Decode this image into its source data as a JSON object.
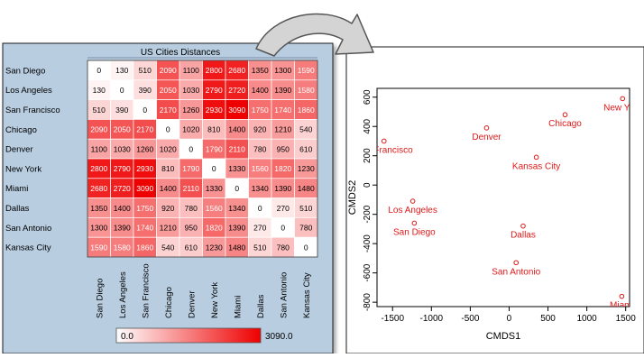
{
  "chart_data": [
    {
      "type": "heatmap",
      "title": "US Cities Distances",
      "rows": [
        "San Diego",
        "Los Angeles",
        "San Francisco",
        "Chicago",
        "Denver",
        "New York",
        "Miami",
        "Dallas",
        "San Antonio",
        "Kansas City"
      ],
      "columns": [
        "San Diego",
        "Los Angeles",
        "San Francisco",
        "Chicago",
        "Denver",
        "New York",
        "Miami",
        "Dallas",
        "San Antonio",
        "Kansas City"
      ],
      "values": [
        [
          0,
          130,
          510,
          2090,
          1100,
          2800,
          2680,
          1350,
          1300,
          1590
        ],
        [
          130,
          0,
          390,
          2050,
          1030,
          2790,
          2720,
          1400,
          1390,
          1580
        ],
        [
          510,
          390,
          0,
          2170,
          1260,
          2930,
          3090,
          1750,
          1740,
          1860
        ],
        [
          2090,
          2050,
          2170,
          0,
          1020,
          810,
          1400,
          920,
          1210,
          540
        ],
        [
          1100,
          1030,
          1260,
          1020,
          0,
          1790,
          2110,
          780,
          950,
          610
        ],
        [
          2800,
          2790,
          2930,
          810,
          1790,
          0,
          1330,
          1560,
          1820,
          1230
        ],
        [
          2680,
          2720,
          3090,
          1400,
          2110,
          1330,
          0,
          1340,
          1390,
          1480
        ],
        [
          1350,
          1400,
          1750,
          920,
          780,
          1560,
          1340,
          0,
          270,
          510
        ],
        [
          1300,
          1390,
          1740,
          1210,
          950,
          1820,
          1390,
          270,
          0,
          780
        ],
        [
          1590,
          1580,
          1860,
          540,
          610,
          1230,
          1480,
          510,
          780,
          0
        ]
      ],
      "colorscale": {
        "min": 0,
        "max": 3090,
        "min_label": "0.0",
        "max_label": "3090.0",
        "low_color": "#ffffff",
        "high_color": "#ee0000"
      }
    },
    {
      "type": "scatter",
      "xlabel": "CMDS1",
      "ylabel": "CMDS2",
      "xlim": [
        -1700,
        1550
      ],
      "ylim": [
        -830,
        660
      ],
      "xticks": [
        -1500,
        -1000,
        -500,
        0,
        500,
        1000,
        1500
      ],
      "yticks": [
        -800,
        -600,
        -400,
        -200,
        0,
        200,
        400,
        600
      ],
      "point_color": "#e01818",
      "points": [
        {
          "label": "San Francisco",
          "x": -1610,
          "y": 300
        },
        {
          "label": "Denver",
          "x": -290,
          "y": 390
        },
        {
          "label": "Chicago",
          "x": 720,
          "y": 480
        },
        {
          "label": "New York",
          "x": 1460,
          "y": 590
        },
        {
          "label": "Kansas City",
          "x": 350,
          "y": 190
        },
        {
          "label": "Los Angeles",
          "x": -1240,
          "y": -110
        },
        {
          "label": "San Diego",
          "x": -1220,
          "y": -260
        },
        {
          "label": "Dallas",
          "x": 180,
          "y": -280
        },
        {
          "label": "San Antonio",
          "x": 90,
          "y": -530
        },
        {
          "label": "Miami",
          "x": 1450,
          "y": -760
        }
      ]
    }
  ]
}
